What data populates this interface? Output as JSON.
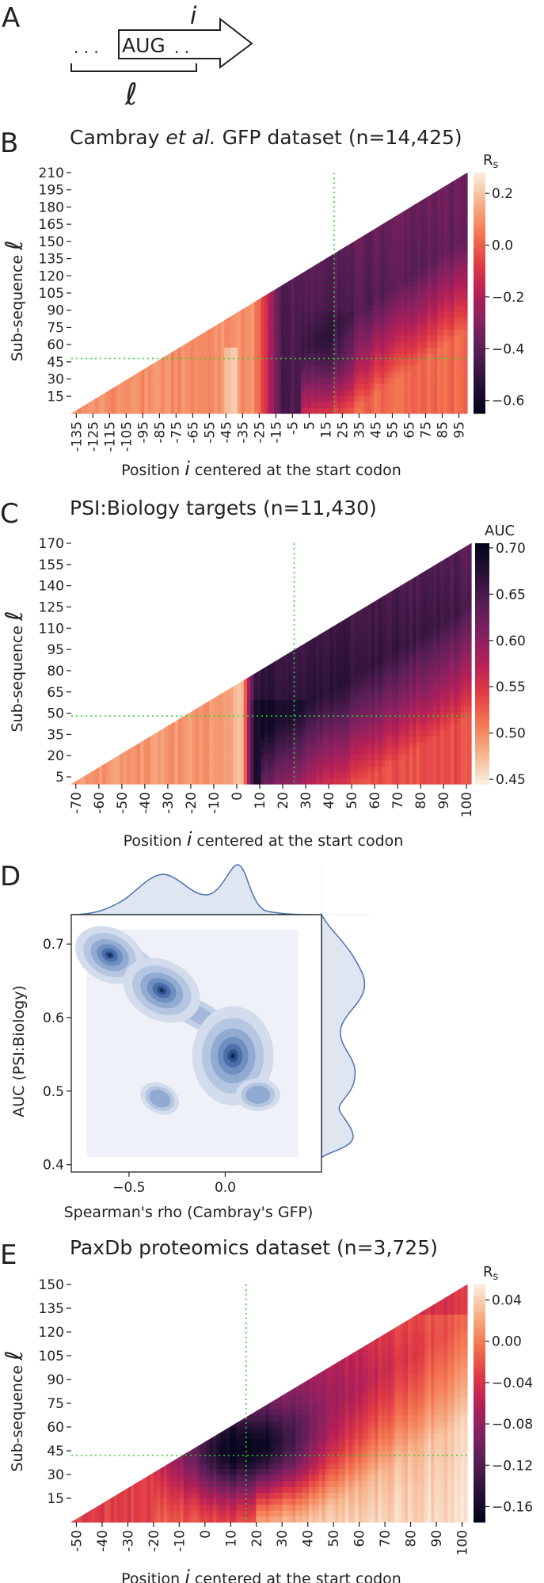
{
  "panel_a": {
    "letter": "A",
    "dots_left": ". . .",
    "codon": "AUG",
    "dots_right": ". .",
    "label_i": "i",
    "label_l": "ℓ"
  },
  "chart_data": [
    {
      "id": "B",
      "letter": "B",
      "type": "heatmap",
      "title_pre": "Cambray ",
      "title_em": "et al.",
      "title_post": " GFP dataset (n=14,425)",
      "xlabel_pre": "Position ",
      "xlabel_var": "i",
      "xlabel_post": " centered at the start codon",
      "ylabel": "Sub-sequence ",
      "ylabel_var": "ℓ",
      "x_ticks": [
        "-135",
        "-125",
        "-115",
        "-105",
        "-95",
        "-85",
        "-75",
        "-65",
        "-55",
        "-45",
        "-35",
        "-25",
        "-15",
        "-5",
        "5",
        "15",
        "25",
        "35",
        "45",
        "55",
        "65",
        "75",
        "85",
        "95"
      ],
      "y_ticks": [
        "15",
        "30",
        "45",
        "60",
        "75",
        "90",
        "105",
        "120",
        "135",
        "150",
        "165",
        "180",
        "195",
        "210"
      ],
      "xlim": [
        -138,
        100
      ],
      "ylim": [
        0,
        210
      ],
      "colorbar_label": "R",
      "colorbar_sub": "s",
      "colorbar_ticks": [
        "0.2",
        "0.0",
        "−0.2",
        "−0.4",
        "−0.6"
      ],
      "colorbar_range": [
        -0.65,
        0.28
      ],
      "colormap": "rocket",
      "colormap_reversed": false,
      "optimum": {
        "x": 20,
        "y": 48
      },
      "guide_color": "#2bd62b"
    },
    {
      "id": "C",
      "letter": "C",
      "type": "heatmap",
      "title_pre": "PSI:Biology targets (n=11,430)",
      "title_em": "",
      "title_post": "",
      "xlabel_pre": "Position ",
      "xlabel_var": "i",
      "xlabel_post": " centered at the start codon",
      "ylabel": "Sub-sequence ",
      "ylabel_var": "ℓ",
      "x_ticks": [
        "-70",
        "-60",
        "-50",
        "-40",
        "-30",
        "-20",
        "-10",
        "0",
        "10",
        "20",
        "30",
        "40",
        "50",
        "60",
        "70",
        "80",
        "90",
        "100"
      ],
      "y_ticks": [
        "5",
        "20",
        "35",
        "50",
        "65",
        "80",
        "95",
        "110",
        "125",
        "140",
        "155",
        "170"
      ],
      "xlim": [
        -72,
        102
      ],
      "ylim": [
        0,
        170
      ],
      "colorbar_label": "AUC",
      "colorbar_sub": "",
      "colorbar_ticks": [
        "0.70",
        "0.65",
        "0.60",
        "0.55",
        "0.50",
        "0.45"
      ],
      "colorbar_range": [
        0.445,
        0.705
      ],
      "colormap": "rocket",
      "colormap_reversed": true,
      "optimum": {
        "x": 25,
        "y": 48
      },
      "guide_color": "#2bd62b"
    },
    {
      "id": "D",
      "letter": "D",
      "type": "kde-joint",
      "xlabel": "Spearman's rho (Cambray's GFP)",
      "ylabel": "AUC (PSI:Biology)",
      "x_ticks": [
        "−0.5",
        "0.0"
      ],
      "y_ticks": [
        "0.4",
        "0.5",
        "0.6",
        "0.7"
      ],
      "xlim": [
        -0.8,
        0.5
      ],
      "ylim": [
        0.39,
        0.74
      ],
      "color": "#4a72b0",
      "fill_color": "#dfe6f2",
      "clusters": [
        {
          "x": -0.6,
          "y": 0.685,
          "weight": 0.8
        },
        {
          "x": -0.33,
          "y": 0.637,
          "weight": 1.0
        },
        {
          "x": 0.04,
          "y": 0.548,
          "weight": 1.0
        },
        {
          "x": 0.17,
          "y": 0.495,
          "weight": 0.3
        },
        {
          "x": -0.34,
          "y": 0.49,
          "weight": 0.25
        }
      ]
    },
    {
      "id": "E",
      "letter": "E",
      "type": "heatmap",
      "title_pre": "PaxDb proteomics dataset (n=3,725)",
      "title_em": "",
      "title_post": "",
      "xlabel_pre": "Position ",
      "xlabel_var": "i",
      "xlabel_post": " centered at the start codon",
      "ylabel": "Sub-sequence ",
      "ylabel_var": "ℓ",
      "x_ticks": [
        "-50",
        "-40",
        "-30",
        "-20",
        "-10",
        "0",
        "10",
        "20",
        "30",
        "40",
        "50",
        "60",
        "70",
        "80",
        "90",
        "100"
      ],
      "y_ticks": [
        "15",
        "30",
        "45",
        "60",
        "75",
        "90",
        "105",
        "120",
        "135",
        "150"
      ],
      "xlim": [
        -52,
        102
      ],
      "ylim": [
        0,
        150
      ],
      "colorbar_label": "R",
      "colorbar_sub": "s",
      "colorbar_ticks": [
        "0.04",
        "0.00",
        "−0.04",
        "−0.08",
        "−0.12",
        "−0.16"
      ],
      "colorbar_range": [
        -0.175,
        0.055
      ],
      "colormap": "rocket",
      "colormap_reversed": false,
      "optimum": {
        "x": 16,
        "y": 42
      },
      "guide_color": "#2bd62b"
    }
  ]
}
